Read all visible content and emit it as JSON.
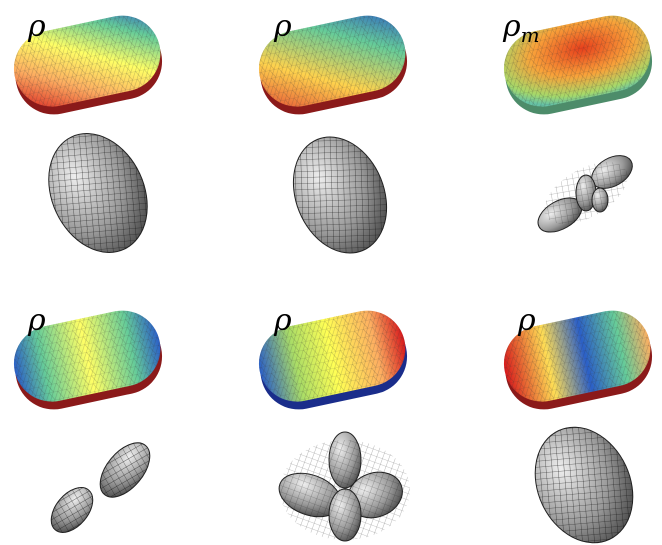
{
  "panels": [
    {
      "label": "ρ"
    },
    {
      "label": "ρ"
    },
    {
      "label": "ρ",
      "subscript": "m"
    },
    {
      "label": "ρ"
    },
    {
      "label": "ρ"
    },
    {
      "label": "ρ"
    }
  ]
}
